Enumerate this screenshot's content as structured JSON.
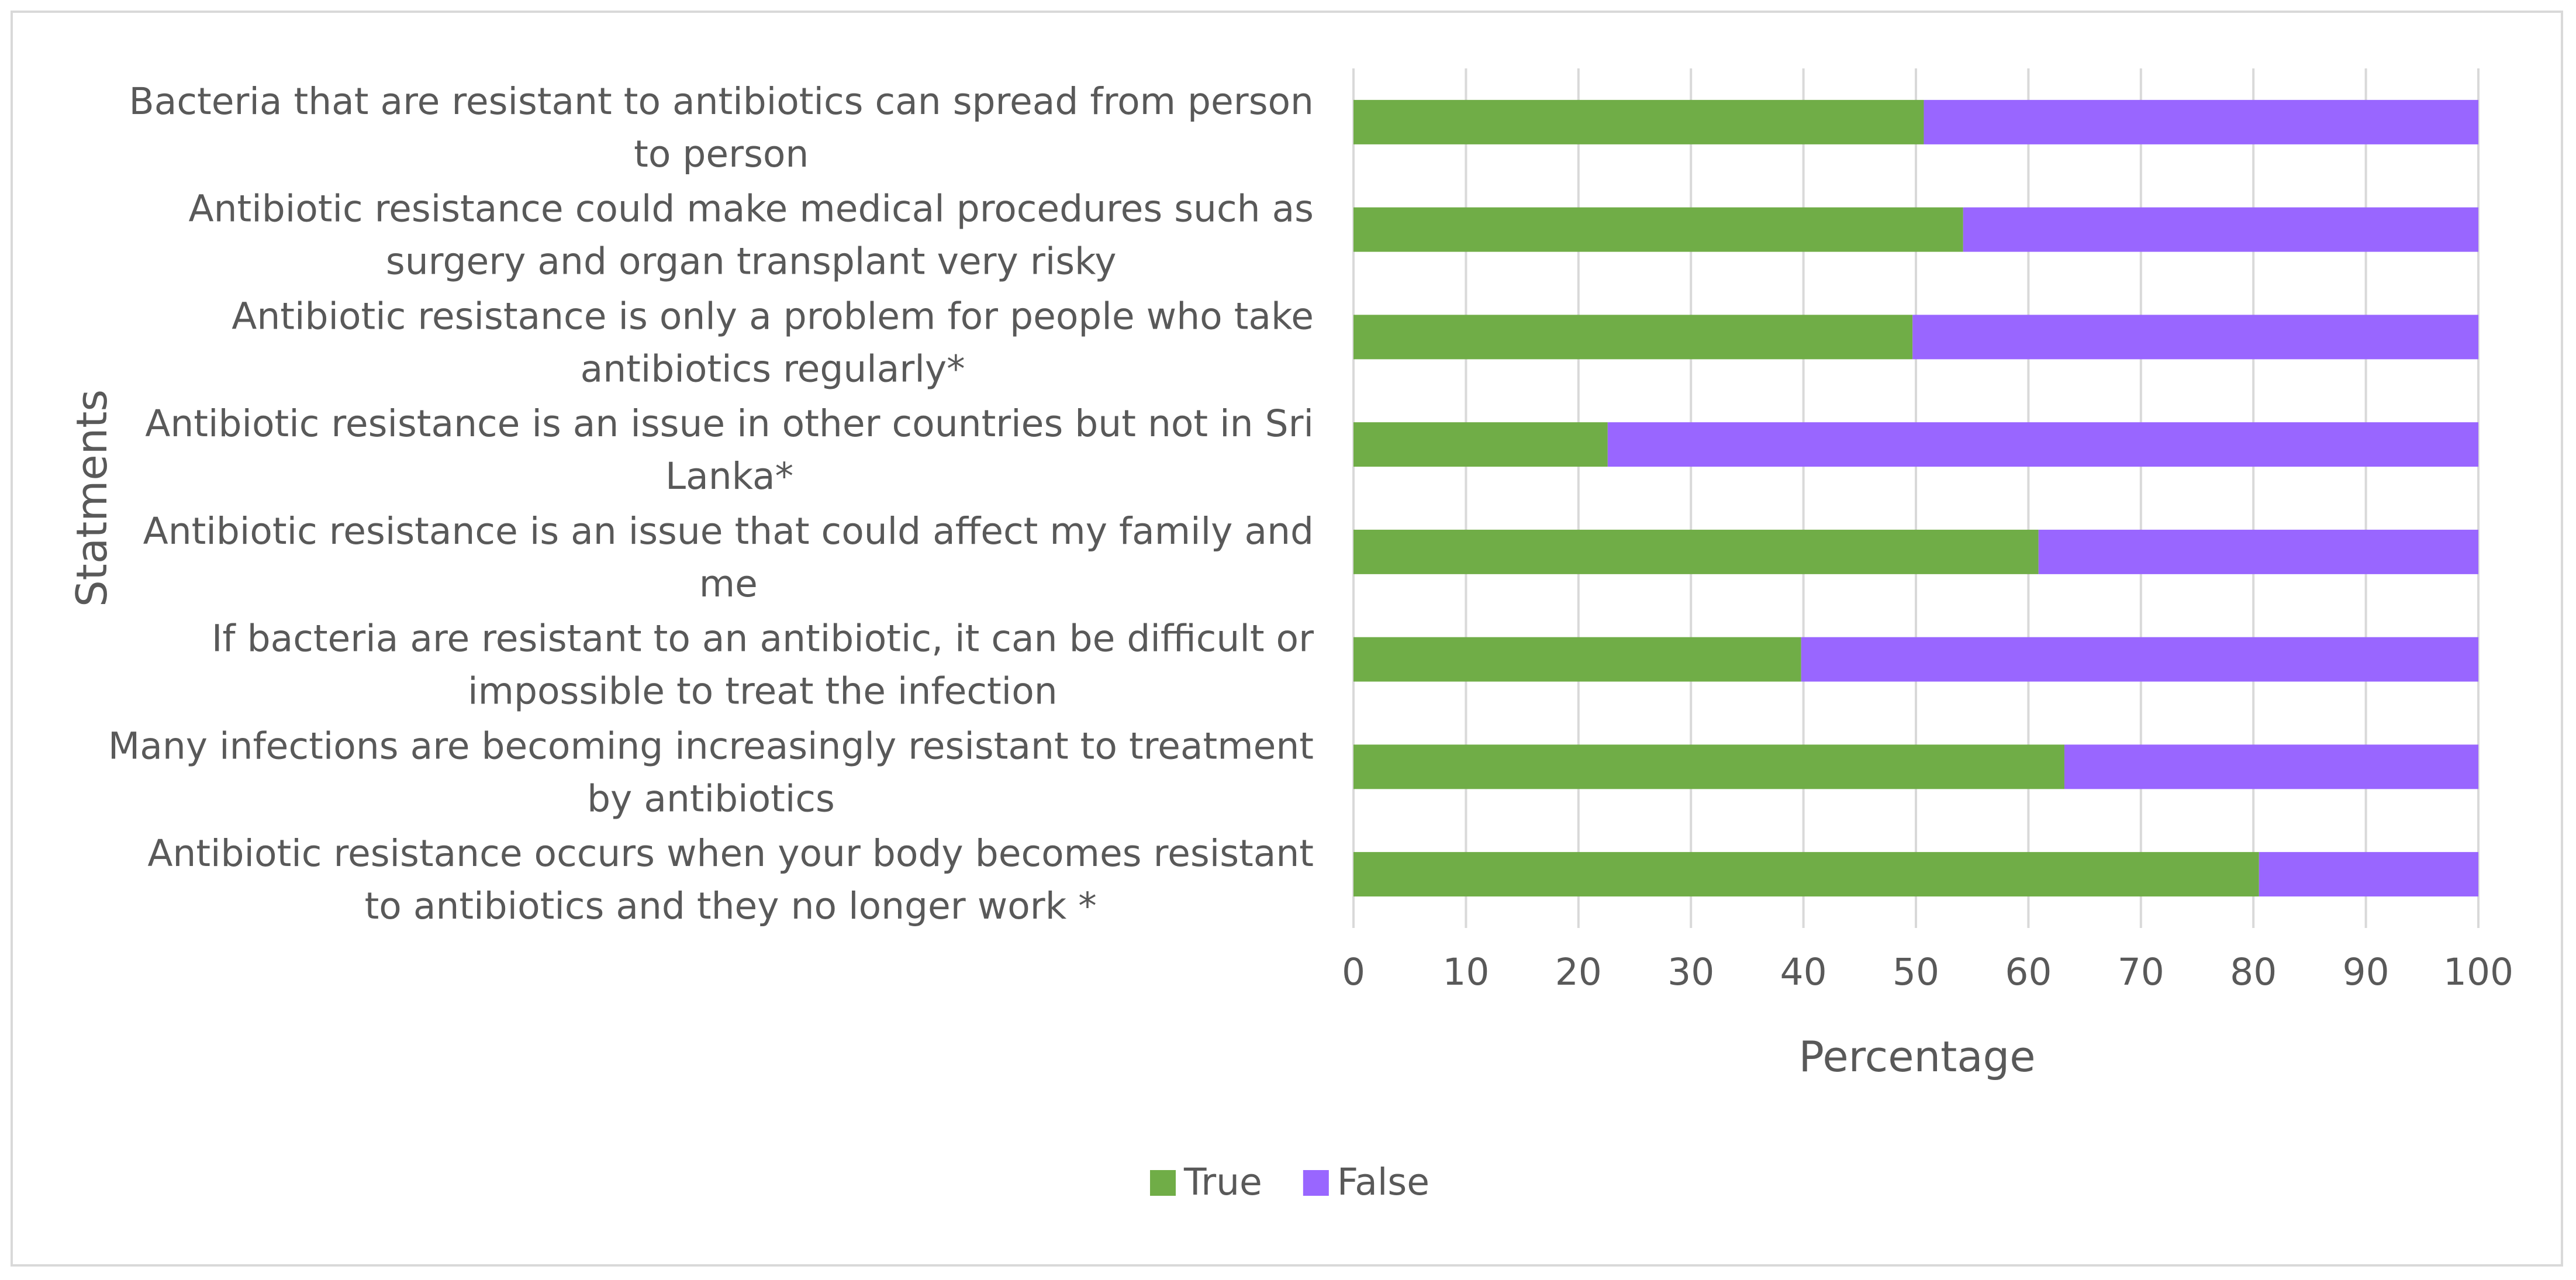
{
  "chart_data": {
    "type": "bar",
    "orientation": "horizontal",
    "stacked": true,
    "title": "",
    "xlabel": "Percentage",
    "ylabel": "Statments",
    "xlim": [
      0,
      100
    ],
    "xticks": [
      0,
      10,
      20,
      30,
      40,
      50,
      60,
      70,
      80,
      90,
      100
    ],
    "grid": "vertical",
    "legend_position": "bottom",
    "categories": [
      "Bacteria that are resistant to antibiotics can spread from person to person",
      "Antibiotic resistance could make medical procedures such as surgery and organ transplant very risky",
      "Antibiotic resistance is only a problem for people who take antibiotics regularly*",
      "Antibiotic resistance is an issue in other countries but not in Sri Lanka*",
      "Antibiotic resistance is an issue that could affect my family and me",
      "If bacteria are resistant to an antibiotic, it can be difficult or impossible to treat the infection",
      "Many infections are becoming increasingly resistant to treatment by antibiotics",
      "Antibiotic resistance occurs when your body becomes resistant to antibiotics and they no longer work *"
    ],
    "category_lines": [
      [
        "Bacteria that are resistant to antibiotics can spread from person",
        "to person"
      ],
      [
        "Antibiotic resistance could make medical procedures such as",
        "surgery and organ transplant very risky"
      ],
      [
        "Antibiotic resistance is only a problem for people who take",
        "antibiotics regularly*"
      ],
      [
        "Antibiotic resistance is an issue in other countries but not in Sri",
        "Lanka*"
      ],
      [
        "Antibiotic resistance is an issue that could affect my family and",
        "me"
      ],
      [
        "If bacteria are resistant to an antibiotic, it can be difficult or",
        "impossible to treat the infection"
      ],
      [
        "Many infections are becoming increasingly resistant to treatment",
        "by antibiotics"
      ],
      [
        "Antibiotic resistance occurs when your body becomes resistant",
        "to antibiotics and they no longer work *"
      ]
    ],
    "series": [
      {
        "name": "True",
        "color": "#70ad47",
        "values": [
          50.7,
          54.2,
          49.7,
          22.6,
          60.9,
          39.8,
          63.2,
          80.5
        ]
      },
      {
        "name": "False",
        "color": "#9966ff",
        "values": [
          49.3,
          45.8,
          50.3,
          77.4,
          39.1,
          60.2,
          36.8,
          19.5
        ]
      }
    ]
  }
}
